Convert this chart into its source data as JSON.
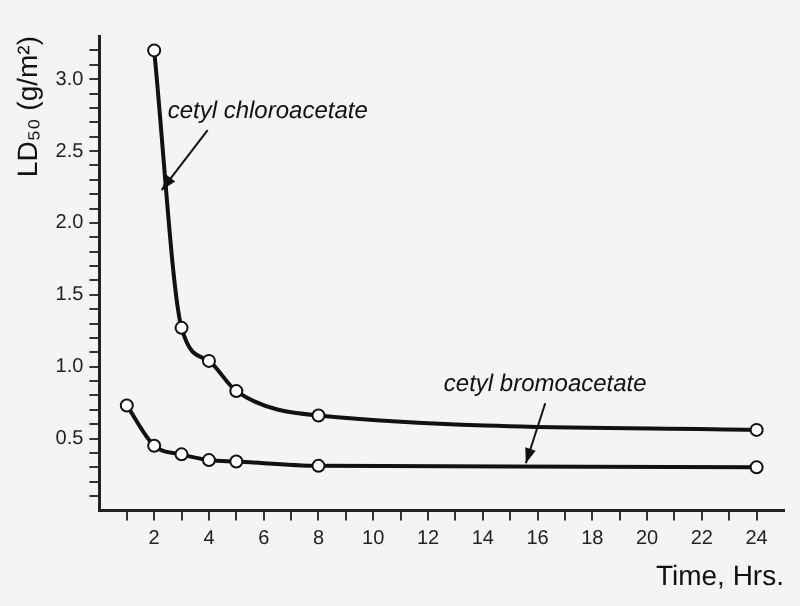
{
  "chart_data": {
    "type": "line",
    "xlabel": "Time, Hrs.",
    "ylabel": "LD₅₀ (g/m²)",
    "marker": "circle",
    "line_style": "solid",
    "grid": false,
    "legend": false,
    "xlim": [
      0,
      25
    ],
    "xticks": [
      {
        "value": 1,
        "label": null
      },
      2,
      {
        "value": 3,
        "label": null
      },
      4,
      {
        "value": 5,
        "label": null
      },
      6,
      {
        "value": 7,
        "label": null
      },
      8,
      {
        "value": 9,
        "label": null
      },
      10,
      {
        "value": 11,
        "label": null
      },
      12,
      {
        "value": 13,
        "label": null
      },
      14,
      {
        "value": 15,
        "label": null
      },
      16,
      {
        "value": 17,
        "label": null
      },
      18,
      {
        "value": 19,
        "label": null
      },
      20,
      {
        "value": 21,
        "label": null
      },
      22,
      {
        "value": 23,
        "label": null
      },
      24
    ],
    "ylim": [
      0,
      3.3
    ],
    "yticks": [
      {
        "value": 0.1,
        "label": null
      },
      {
        "value": 0.2,
        "label": null
      },
      {
        "value": 0.3,
        "label": null
      },
      {
        "value": 0.4,
        "label": null
      },
      {
        "value": 0.5,
        "label": "0.5"
      },
      {
        "value": 0.6,
        "label": null
      },
      {
        "value": 0.7,
        "label": null
      },
      {
        "value": 0.8,
        "label": null
      },
      {
        "value": 0.9,
        "label": null
      },
      {
        "value": 1,
        "label": "1.0"
      },
      {
        "value": 1.1,
        "label": null
      },
      {
        "value": 1.2,
        "label": null
      },
      {
        "value": 1.3,
        "label": null
      },
      {
        "value": 1.4,
        "label": null
      },
      {
        "value": 1.5,
        "label": "1.5"
      },
      {
        "value": 1.6,
        "label": null
      },
      {
        "value": 1.7,
        "label": null
      },
      {
        "value": 1.8,
        "label": null
      },
      {
        "value": 1.9,
        "label": null
      },
      {
        "value": 2,
        "label": "2.0"
      },
      {
        "value": 2.1,
        "label": null
      },
      {
        "value": 2.2,
        "label": null
      },
      {
        "value": 2.3,
        "label": null
      },
      {
        "value": 2.4,
        "label": null
      },
      {
        "value": 2.5,
        "label": "2.5"
      },
      {
        "value": 2.6,
        "label": null
      },
      {
        "value": 2.7,
        "label": null
      },
      {
        "value": 2.8,
        "label": null
      },
      {
        "value": 2.9,
        "label": null
      },
      {
        "value": 3,
        "label": "3.0"
      },
      {
        "value": 3.1,
        "label": null
      },
      {
        "value": 3.2,
        "label": null
      }
    ],
    "series": [
      {
        "color": "#111111",
        "x": [
          2,
          3,
          4,
          5,
          8,
          24
        ],
        "values": [
          3.2,
          1.27,
          1.04,
          0.83,
          0.66,
          0.56
        ]
      },
      {
        "color": "#111111",
        "x": [
          1,
          2,
          3,
          4,
          5,
          8,
          24
        ],
        "values": [
          0.73,
          0.45,
          0.39,
          0.35,
          0.34,
          0.31,
          0.3
        ]
      }
    ],
    "annotations": [
      {
        "text": "cetyl chloroacetate",
        "x": 2.2,
        "y": 2.2
      },
      {
        "text": "cetyl bromoacetate",
        "x": 15.5,
        "y": 0.3
      }
    ]
  }
}
